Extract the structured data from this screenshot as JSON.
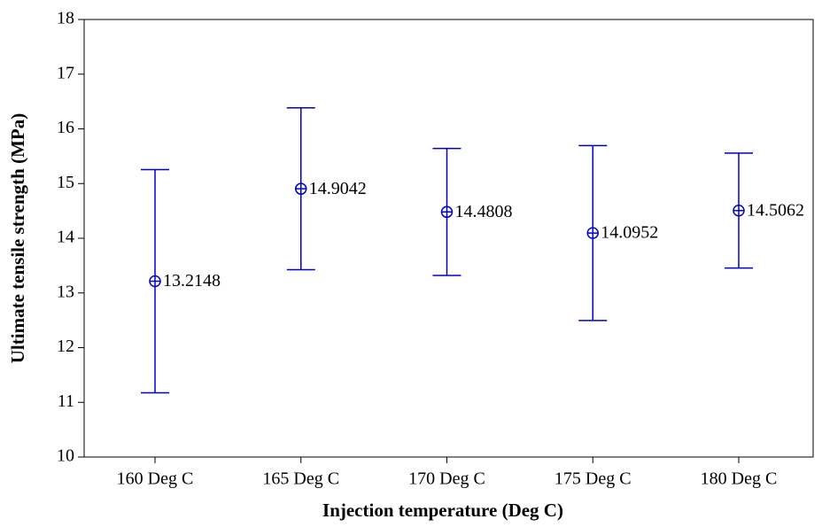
{
  "chart_data": {
    "type": "errorbar",
    "xlabel": "Injection temperature (Deg C)",
    "ylabel": "Ultimate tensile strength (MPa)",
    "categories": [
      "160 Deg C",
      "165 Deg C",
      "170 Deg C",
      "175 Deg C",
      "180 Deg C"
    ],
    "values": [
      13.2148,
      14.9042,
      14.4808,
      14.0952,
      14.5062
    ],
    "errors": [
      2.04,
      1.48,
      1.16,
      1.6,
      1.05
    ],
    "color": "#0000cc",
    "ylim": [
      10,
      18
    ],
    "yticks": [
      10,
      11,
      12,
      13,
      14,
      15,
      16,
      17,
      18
    ]
  }
}
